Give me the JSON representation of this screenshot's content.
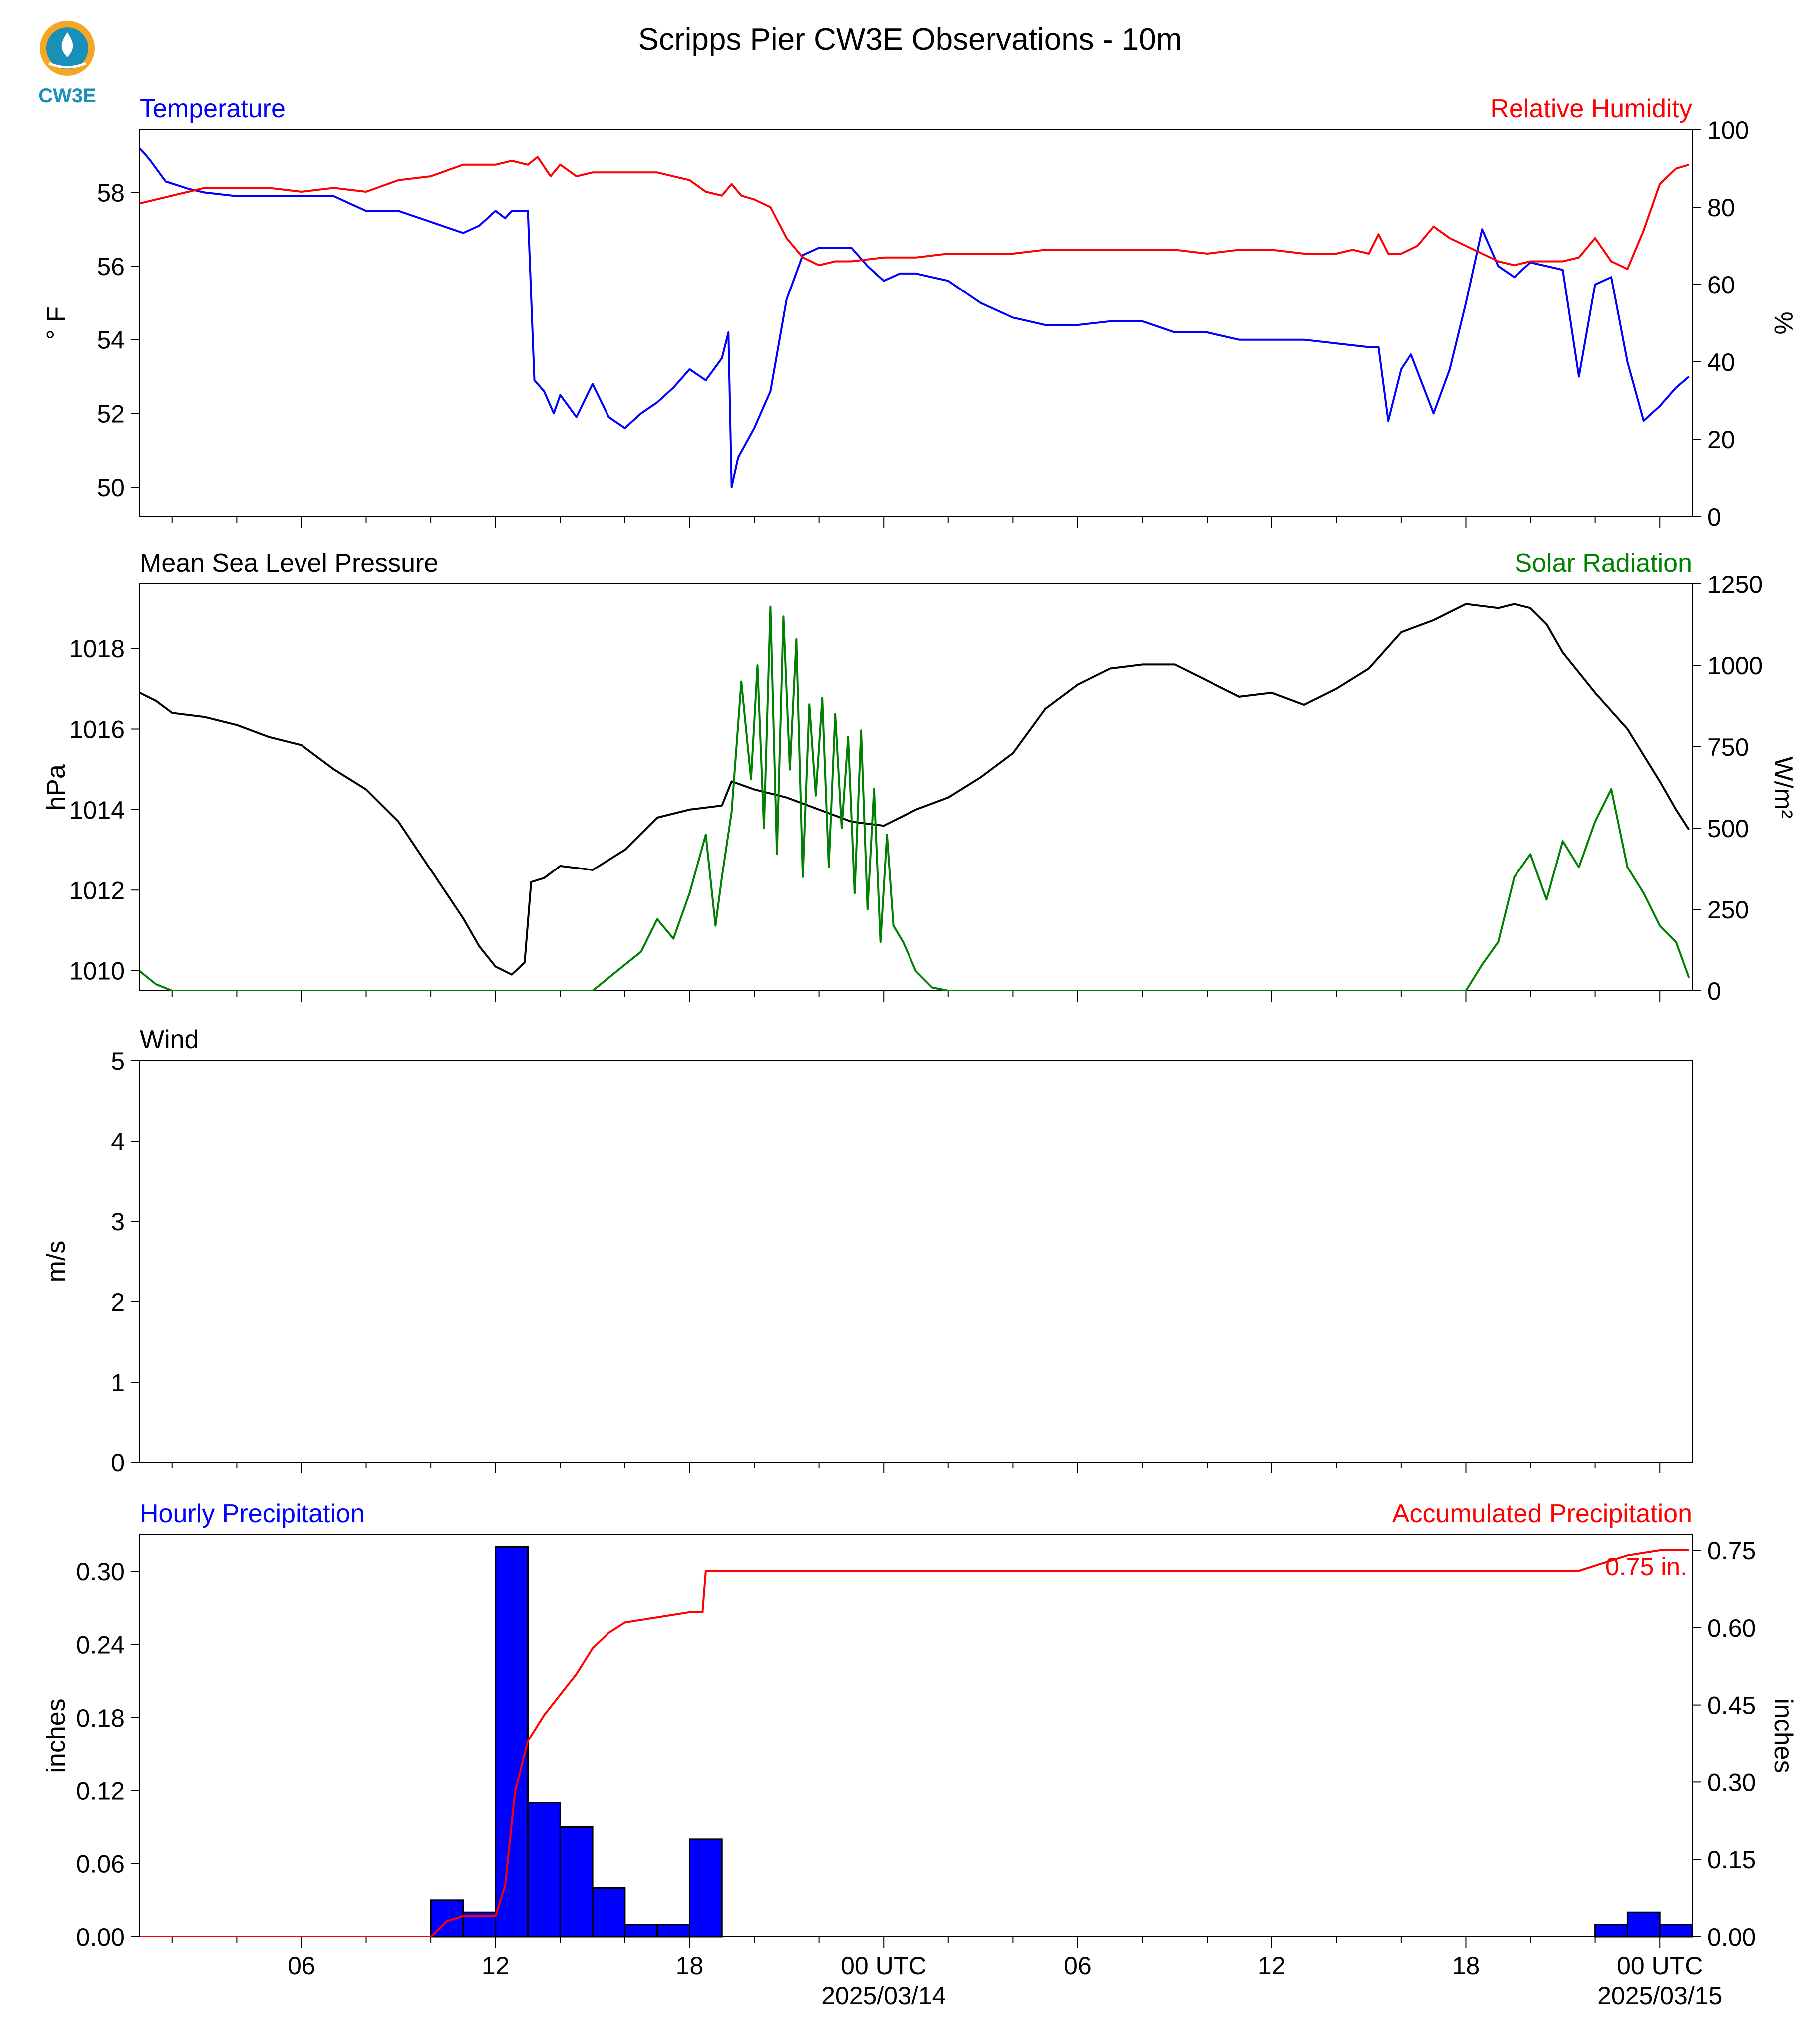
{
  "title": "Scripps Pier CW3E Observations - 10m",
  "logo": {
    "text": "CW3E",
    "color": "#1a8fb8",
    "accent": "#f5a623"
  },
  "time_axis": {
    "tick_labels": [
      "06",
      "12",
      "18",
      "00 UTC",
      "06",
      "12",
      "18",
      "00 UTC"
    ],
    "date_labels": [
      "2025/03/14",
      "2025/03/15"
    ]
  },
  "chart_data": [
    {
      "type": "line",
      "name": "temperature-humidity",
      "left_title": "Temperature",
      "right_title": "Relative Humidity",
      "ylabel": "° F",
      "ylabel_right": "%",
      "ylim": [
        49.2,
        59.7
      ],
      "ylim_right": [
        0,
        100
      ],
      "yticks": [
        "50",
        "52",
        "54",
        "56",
        "58"
      ],
      "yticks_right": [
        "0",
        "20",
        "40",
        "60",
        "80",
        "100"
      ],
      "series": [
        {
          "axis": "left",
          "color": "#0000ff",
          "x": [
            0,
            0.3,
            0.8,
            1.5,
            2,
            3,
            4,
            5,
            6,
            7,
            8,
            9,
            10,
            10.5,
            11,
            11.3,
            11.5,
            12,
            12.2,
            12.5,
            12.8,
            13,
            13.5,
            14,
            14.5,
            15,
            15.5,
            16,
            16.5,
            17,
            17.5,
            18,
            18.2,
            18.3,
            18.5,
            19,
            19.5,
            20,
            20.5,
            21,
            21.5,
            22,
            22.5,
            23,
            23.5,
            24,
            25,
            26,
            27,
            28,
            29,
            30,
            31,
            32,
            33,
            34,
            35,
            36,
            37,
            38,
            38.3,
            38.6,
            39,
            39.3,
            40,
            40.5,
            41,
            41.5,
            42,
            42.5,
            43,
            43.5,
            44,
            44.5,
            45,
            45.5,
            46,
            46.5,
            47,
            47.5,
            47.9
          ],
          "y": [
            59.2,
            58.9,
            58.3,
            58.1,
            58.0,
            57.9,
            57.9,
            57.9,
            57.9,
            57.5,
            57.5,
            57.2,
            56.9,
            57.1,
            57.5,
            57.3,
            57.5,
            57.5,
            52.9,
            52.6,
            52.0,
            52.5,
            51.9,
            52.8,
            51.9,
            51.6,
            52.0,
            52.3,
            52.7,
            53.2,
            52.9,
            53.5,
            54.2,
            50.0,
            50.8,
            51.6,
            52.6,
            55.1,
            56.3,
            56.5,
            56.5,
            56.5,
            56.0,
            55.6,
            55.8,
            55.8,
            55.6,
            55.0,
            54.6,
            54.4,
            54.4,
            54.5,
            54.5,
            54.2,
            54.2,
            54.0,
            54.0,
            54.0,
            53.9,
            53.8,
            53.8,
            51.8,
            53.2,
            53.6,
            52.0,
            53.2,
            55.0,
            57.0,
            56.0,
            55.7,
            56.1,
            56.0,
            55.9,
            53.0,
            55.5,
            55.7,
            53.4,
            51.8,
            52.2,
            52.7,
            53.0
          ]
        },
        {
          "axis": "right",
          "color": "#ff0000",
          "x": [
            0,
            1,
            2,
            3,
            4,
            5,
            6,
            7,
            8,
            9,
            10,
            11,
            11.5,
            12,
            12.3,
            12.7,
            13,
            13.5,
            14,
            15,
            16,
            17,
            17.5,
            18,
            18.3,
            18.6,
            19,
            19.5,
            20,
            20.5,
            21,
            21.5,
            22,
            23,
            24,
            25,
            26,
            27,
            28,
            29,
            30,
            31,
            32,
            33,
            34,
            35,
            36,
            37,
            37.5,
            38,
            38.3,
            38.6,
            39,
            39.5,
            40,
            40.5,
            41,
            41.5,
            42,
            42.5,
            43,
            43.5,
            44,
            44.5,
            45,
            45.5,
            46,
            46.5,
            47,
            47.5,
            47.9
          ],
          "y": [
            81,
            83,
            85,
            85,
            85,
            84,
            85,
            84,
            87,
            88,
            91,
            91,
            92,
            91,
            93,
            88,
            91,
            88,
            89,
            89,
            89,
            87,
            84,
            83,
            86,
            83,
            82,
            80,
            72,
            67,
            65,
            66,
            66,
            67,
            67,
            68,
            68,
            68,
            69,
            69,
            69,
            69,
            69,
            68,
            69,
            69,
            68,
            68,
            69,
            68,
            73,
            68,
            68,
            70,
            75,
            72,
            70,
            68,
            66,
            65,
            66,
            66,
            66,
            67,
            72,
            66,
            64,
            74,
            86,
            90,
            91
          ]
        }
      ]
    },
    {
      "type": "line",
      "name": "pressure-solar",
      "left_title": "Mean Sea Level Pressure",
      "right_title": "Solar Radiation",
      "ylabel": "hPa",
      "ylabel_right": "W/m²",
      "ylim": [
        1009.5,
        1019.6
      ],
      "ylim_right": [
        0,
        1250
      ],
      "yticks": [
        "1010",
        "1012",
        "1014",
        "1016",
        "1018"
      ],
      "yticks_right": [
        "0",
        "250",
        "500",
        "750",
        "1000",
        "1250"
      ],
      "series": [
        {
          "axis": "left",
          "color": "#000000",
          "x": [
            0,
            0.5,
            1,
            2,
            3,
            4,
            5,
            6,
            7,
            8,
            9,
            10,
            10.5,
            11,
            11.5,
            11.9,
            12.1,
            12.5,
            13,
            14,
            15,
            16,
            17,
            18,
            18.3,
            19,
            20,
            21,
            22,
            23,
            24,
            25,
            26,
            27,
            28,
            29,
            30,
            31,
            32,
            33,
            34,
            35,
            36,
            37,
            38,
            39,
            40,
            41,
            42,
            42.5,
            43,
            43.5,
            44,
            44.5,
            45,
            46,
            47,
            47.5,
            47.9
          ],
          "y": [
            1016.9,
            1016.7,
            1016.4,
            1016.3,
            1016.1,
            1015.8,
            1015.6,
            1015.0,
            1014.5,
            1013.7,
            1012.5,
            1011.3,
            1010.6,
            1010.1,
            1009.9,
            1010.2,
            1012.2,
            1012.3,
            1012.6,
            1012.5,
            1013.0,
            1013.8,
            1014.0,
            1014.1,
            1014.7,
            1014.5,
            1014.3,
            1014.0,
            1013.7,
            1013.6,
            1014.0,
            1014.3,
            1014.8,
            1015.4,
            1016.5,
            1017.1,
            1017.5,
            1017.6,
            1017.6,
            1017.2,
            1016.8,
            1016.9,
            1016.6,
            1017.0,
            1017.5,
            1018.4,
            1018.7,
            1019.1,
            1019.0,
            1019.1,
            1019.0,
            1018.6,
            1017.9,
            1017.4,
            1016.9,
            1016.0,
            1014.7,
            1014.0,
            1013.5
          ]
        },
        {
          "axis": "right",
          "color": "#008000",
          "x": [
            0,
            0.5,
            1,
            14,
            14.5,
            15,
            15.5,
            16,
            16.5,
            17,
            17.5,
            17.8,
            18,
            18.3,
            18.6,
            18.9,
            19.1,
            19.3,
            19.5,
            19.7,
            19.9,
            20.1,
            20.3,
            20.5,
            20.7,
            20.9,
            21.1,
            21.3,
            21.5,
            21.7,
            21.9,
            22.1,
            22.3,
            22.5,
            22.7,
            22.9,
            23.1,
            23.3,
            23.6,
            24,
            24.5,
            25,
            41,
            41.5,
            42,
            42.5,
            43,
            43.5,
            44,
            44.5,
            45,
            45.5,
            46,
            46.5,
            47,
            47.5,
            47.9
          ],
          "y": [
            60,
            20,
            0,
            0,
            40,
            80,
            120,
            220,
            160,
            300,
            480,
            200,
            350,
            550,
            950,
            650,
            1000,
            500,
            1180,
            420,
            1150,
            680,
            1080,
            350,
            880,
            600,
            900,
            380,
            850,
            500,
            780,
            300,
            800,
            250,
            620,
            150,
            480,
            200,
            150,
            60,
            10,
            0,
            0,
            80,
            150,
            350,
            420,
            280,
            460,
            380,
            520,
            620,
            380,
            300,
            200,
            150,
            40
          ]
        }
      ]
    },
    {
      "type": "line",
      "name": "wind",
      "left_title": "Wind",
      "ylabel": "m/s",
      "ylim": [
        0,
        5
      ],
      "yticks": [
        "0",
        "1",
        "2",
        "3",
        "4",
        "5"
      ],
      "series": []
    },
    {
      "type": "bar",
      "name": "precipitation",
      "left_title": "Hourly Precipitation",
      "right_title": "Accumulated Precipitation",
      "ylabel": "inches",
      "ylabel_right": "inches",
      "ylim": [
        0,
        0.33
      ],
      "ylim_right": [
        0,
        0.78
      ],
      "yticks": [
        "0.00",
        "0.06",
        "0.12",
        "0.18",
        "0.24",
        "0.30"
      ],
      "yticks_right": [
        "0.00",
        "0.15",
        "0.30",
        "0.45",
        "0.60",
        "0.75"
      ],
      "bar_color": "#0000ff",
      "bars": {
        "x": [
          9,
          10,
          11,
          12,
          13,
          14,
          15,
          16,
          17,
          18,
          45,
          46,
          47
        ],
        "values": [
          0.03,
          0.02,
          0.32,
          0.11,
          0.09,
          0.04,
          0.01,
          0.01,
          0.08,
          0.0,
          0.01,
          0.02,
          0.01
        ]
      },
      "accumulated": {
        "color": "#ff0000",
        "x": [
          0,
          9,
          9.5,
          10,
          11,
          11.3,
          11.6,
          12,
          12.5,
          13,
          13.5,
          14,
          14.5,
          15,
          16,
          17,
          17.2,
          17.4,
          17.5,
          18,
          44.5,
          45,
          45.5,
          46,
          47,
          47.9
        ],
        "y": [
          0,
          0,
          0.03,
          0.04,
          0.04,
          0.1,
          0.28,
          0.38,
          0.43,
          0.47,
          0.51,
          0.56,
          0.59,
          0.61,
          0.62,
          0.63,
          0.63,
          0.63,
          0.71,
          0.71,
          0.71,
          0.72,
          0.73,
          0.74,
          0.75,
          0.75
        ]
      },
      "annotation": "0.75 in."
    }
  ]
}
